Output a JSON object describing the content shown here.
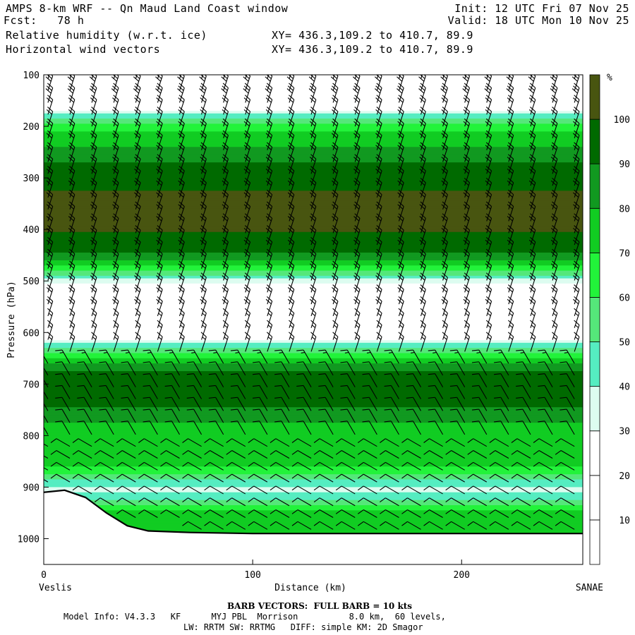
{
  "header": {
    "title": "AMPS 8-km WRF -- Qn Maud Land Coast window",
    "init": "Init: 12 UTC Fri 07 Nov 25",
    "forecast": "Fcst:   78 h",
    "valid": "Valid: 18 UTC Mon 10 Nov 25",
    "field1": "Relative humidity (w.r.t. ice)",
    "xy1": "XY= 436.3,109.2 to 410.7, 89.9",
    "field2": "Horizontal wind vectors",
    "xy2": "XY= 436.3,109.2 to 410.7, 89.9"
  },
  "footer": {
    "barb_note": "BARB VECTORS:  FULL BARB = 10 kts",
    "model_line1": "Model Info: V4.3.3   KF      MYJ PBL  Morrison          8.0 km,  60 levels,",
    "model_line2": "LW: RRTM SW: RRTMG   DIFF: simple KM: 2D Smagor"
  },
  "chart_data": {
    "type": "cross-section",
    "title": "Relative humidity (w.r.t. ice)",
    "xlabel": "Distance (km)",
    "ylabel": "Pressure (hPa)",
    "xlim": [
      0,
      258
    ],
    "ylim": [
      100,
      1050
    ],
    "x_ticks": [
      0,
      100,
      200
    ],
    "y_ticks": [
      100,
      200,
      300,
      400,
      500,
      600,
      700,
      800,
      900,
      1000
    ],
    "x_endpoints": [
      "Veslis",
      "SANAE"
    ],
    "colorbar": {
      "unit": "%",
      "levels": [
        10,
        20,
        30,
        40,
        50,
        60,
        70,
        80,
        90,
        100
      ],
      "colors": [
        "#ffffff",
        "#ffffff",
        "#ffffff",
        "#ddfcf0",
        "#55edc1",
        "#55e77a",
        "#22f33a",
        "#11cc22",
        "#119920",
        "#006a00",
        "#485510"
      ]
    },
    "rh_profile": [
      {
        "p": 100,
        "rh": 10
      },
      {
        "p": 160,
        "rh": 15
      },
      {
        "p": 175,
        "rh": 40
      },
      {
        "p": 190,
        "rh": 55
      },
      {
        "p": 210,
        "rh": 70
      },
      {
        "p": 230,
        "rh": 75
      },
      {
        "p": 255,
        "rh": 85
      },
      {
        "p": 275,
        "rh": 92
      },
      {
        "p": 300,
        "rh": 96
      },
      {
        "p": 340,
        "rh": 102
      },
      {
        "p": 400,
        "rh": 101
      },
      {
        "p": 440,
        "rh": 94
      },
      {
        "p": 460,
        "rh": 80
      },
      {
        "p": 480,
        "rh": 60
      },
      {
        "p": 500,
        "rh": 35
      },
      {
        "p": 520,
        "rh": 15
      },
      {
        "p": 600,
        "rh": 12
      },
      {
        "p": 620,
        "rh": 40
      },
      {
        "p": 640,
        "rh": 60
      },
      {
        "p": 660,
        "rh": 80
      },
      {
        "p": 680,
        "rh": 92
      },
      {
        "p": 700,
        "rh": 96
      },
      {
        "p": 740,
        "rh": 92
      },
      {
        "p": 760,
        "rh": 82
      },
      {
        "p": 790,
        "rh": 78
      },
      {
        "p": 820,
        "rh": 75
      },
      {
        "p": 860,
        "rh": 72
      },
      {
        "p": 880,
        "rh": 55
      },
      {
        "p": 905,
        "rh": 38
      },
      {
        "p": 925,
        "rh": 50
      },
      {
        "p": 945,
        "rh": 70
      },
      {
        "p": 965,
        "rh": 76
      },
      {
        "p": 990,
        "rh": 72
      }
    ],
    "terrain_hpa": [
      {
        "x": 0,
        "p": 910
      },
      {
        "x": 10,
        "p": 906
      },
      {
        "x": 20,
        "p": 920
      },
      {
        "x": 30,
        "p": 950
      },
      {
        "x": 40,
        "p": 975
      },
      {
        "x": 50,
        "p": 985
      },
      {
        "x": 70,
        "p": 988
      },
      {
        "x": 100,
        "p": 990
      },
      {
        "x": 150,
        "p": 990
      },
      {
        "x": 200,
        "p": 990
      },
      {
        "x": 258,
        "p": 990
      }
    ],
    "wind_barbs_kts": [
      {
        "p": 120,
        "speed": 30
      },
      {
        "p": 220,
        "speed": 20
      },
      {
        "p": 320,
        "speed": 20
      },
      {
        "p": 420,
        "speed": 20
      },
      {
        "p": 520,
        "speed": 20
      },
      {
        "p": 620,
        "speed": 15
      },
      {
        "p": 720,
        "speed": 10
      },
      {
        "p": 820,
        "speed": 10
      },
      {
        "p": 920,
        "speed": 10
      }
    ]
  }
}
